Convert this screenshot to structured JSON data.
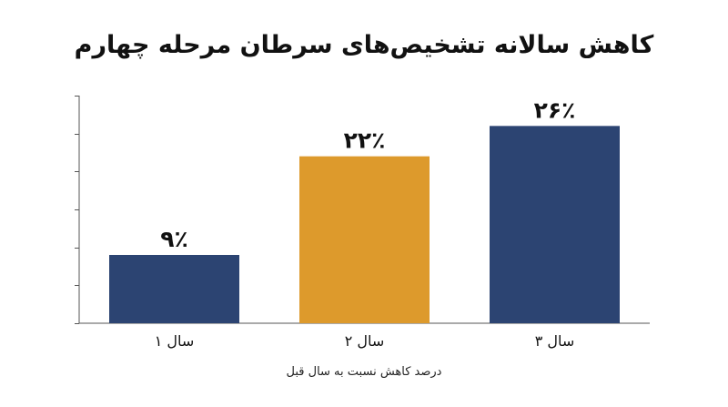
{
  "chart_data": {
    "type": "bar",
    "title": "کاهش سالانه تشخیص‌های سرطان مرحله چهارم",
    "xlabel": "درصد کاهش نسبت به سال قبل",
    "ylabel": "",
    "categories": [
      "سال ۱",
      "سال ۲",
      "سال ۳"
    ],
    "values": [
      9,
      22,
      26
    ],
    "value_labels": [
      "۹٪",
      "۲۲٪",
      "۲۶٪"
    ],
    "unit": "%",
    "ylim": [
      0,
      30
    ],
    "bar_colors": [
      "#2c4472",
      "#dd9a2c",
      "#2c4472"
    ],
    "grid": false,
    "legend": "none"
  }
}
